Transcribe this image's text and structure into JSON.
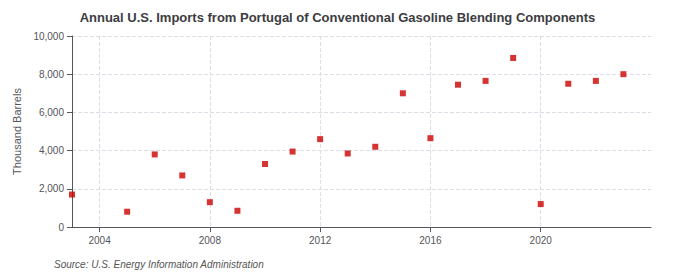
{
  "chart_data": {
    "type": "scatter",
    "title": "Annual U.S. Imports from Portugal of Conventional Gasoline Blending Components",
    "ylabel": "Thousand Barrels",
    "annotations": [
      "Source: U.S. Energy Information Administration"
    ],
    "x": [
      2003,
      2005,
      2006,
      2007,
      2008,
      2009,
      2010,
      2011,
      2012,
      2013,
      2014,
      2015,
      2016,
      2017,
      2018,
      2019,
      2020,
      2021,
      2022,
      2023
    ],
    "values": [
      1700,
      800,
      3800,
      2700,
      1300,
      850,
      3300,
      3950,
      4600,
      3850,
      4200,
      7000,
      4650,
      7450,
      7650,
      8850,
      1200,
      7500,
      7650,
      8000
    ],
    "color": "#cc0000",
    "marker": "square",
    "xlim": [
      2003.0,
      2024.0
    ],
    "ylim": [
      0,
      10000
    ],
    "xticks": [
      2004,
      2008,
      2012,
      2016,
      2020
    ],
    "yticks": [
      0,
      {
        "value": 2000,
        "label": "2,000"
      },
      {
        "value": 4000,
        "label": "4,000"
      },
      {
        "value": 6000,
        "label": "6,000"
      },
      {
        "value": 8000,
        "label": "8,000"
      },
      {
        "value": 10000,
        "label": "10,000"
      }
    ],
    "grid": true
  }
}
